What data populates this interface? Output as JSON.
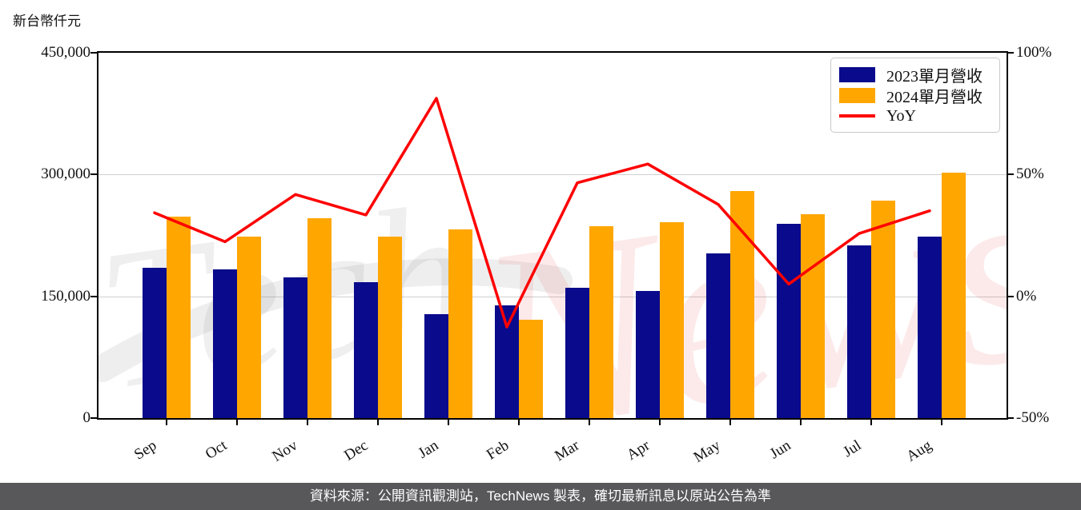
{
  "unit_label": "新台幣仟元",
  "watermark": {
    "part1": "Tech",
    "part2": "News"
  },
  "footer": {
    "text": "資料來源：公開資訊觀測站，TechNews 製表，確切最新訊息以原站公告為準"
  },
  "chart_data": {
    "type": "bar",
    "title": "",
    "categories": [
      "Sep",
      "Oct",
      "Nov",
      "Dec",
      "Jan",
      "Feb",
      "Mar",
      "Apr",
      "May",
      "Jun",
      "Jul",
      "Aug"
    ],
    "series": [
      {
        "name": "2023單月營收",
        "kind": "bar",
        "color": "#0a0a8c",
        "axis": "left",
        "values": [
          185000,
          183000,
          173500,
          167500,
          128000,
          139000,
          161000,
          156500,
          203000,
          239500,
          213000,
          224000
        ]
      },
      {
        "name": "2024單月營收",
        "kind": "bar",
        "color": "#ffa600",
        "axis": "left",
        "values": [
          248500,
          224000,
          246000,
          223500,
          232000,
          121500,
          236000,
          241500,
          279500,
          251500,
          268000,
          302500
        ]
      },
      {
        "name": "YoY",
        "kind": "line",
        "color": "#fe0000",
        "axis": "right",
        "values": [
          34.3,
          22.4,
          41.8,
          33.4,
          81.3,
          -12.6,
          46.6,
          54.3,
          37.7,
          5.0,
          25.8,
          35.1
        ]
      }
    ],
    "left_axis": {
      "min": 0,
      "max": 450000,
      "ticks": [
        {
          "label": "0",
          "value": 0
        },
        {
          "label": "150,000",
          "value": 150000
        },
        {
          "label": "300,000",
          "value": 300000
        },
        {
          "label": "450,000",
          "value": 450000
        }
      ]
    },
    "right_axis": {
      "min": -50,
      "max": 100,
      "ticks": [
        {
          "label": "-50%",
          "value": -50
        },
        {
          "label": "0%",
          "value": 0
        },
        {
          "label": "50%",
          "value": 50
        },
        {
          "label": "100%",
          "value": 100
        }
      ]
    },
    "grid": "horizontal",
    "legend_position": "top-right",
    "grid_color": "#cfcfcf"
  }
}
